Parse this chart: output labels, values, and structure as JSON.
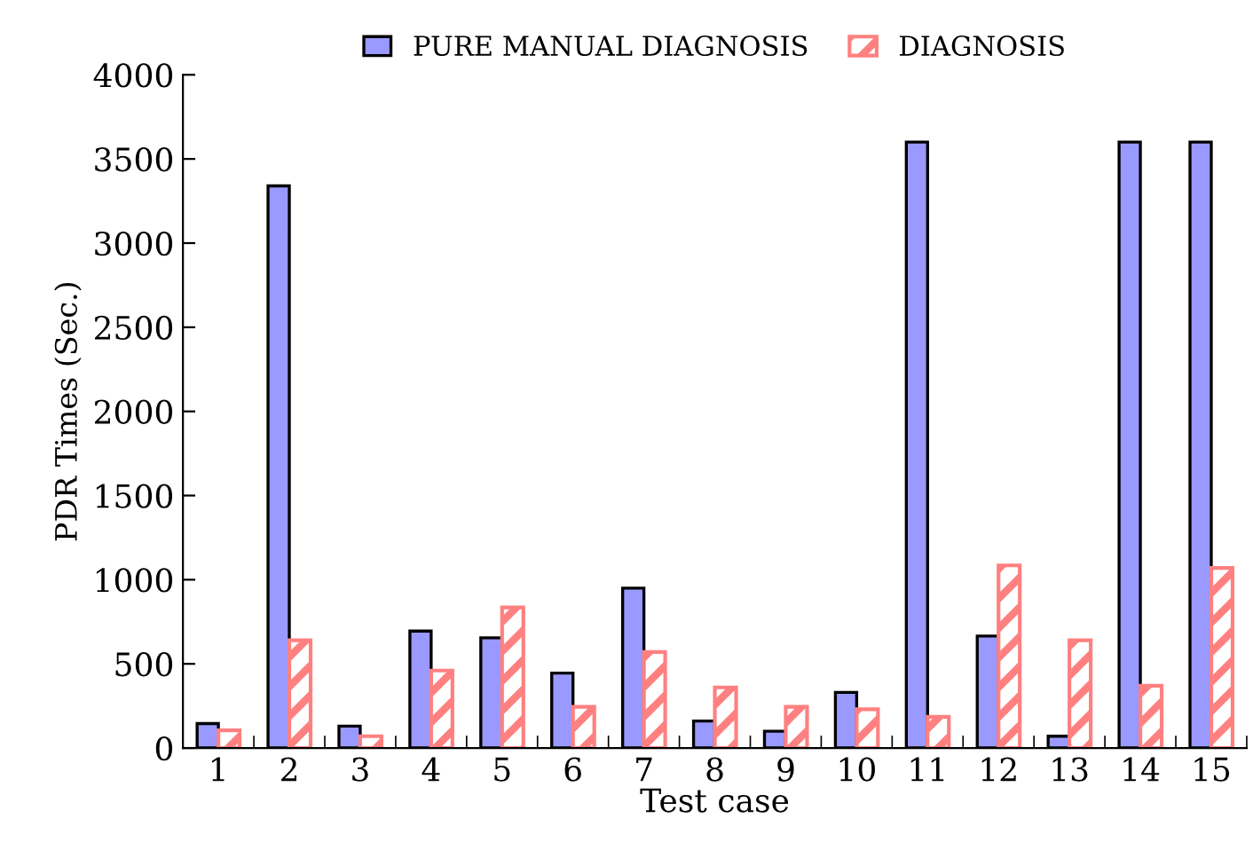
{
  "chart_data": {
    "type": "bar",
    "xlabel": "Test case",
    "ylabel": "PDR Times (Sec.)",
    "categories": [
      "1",
      "2",
      "3",
      "4",
      "5",
      "6",
      "7",
      "8",
      "9",
      "10",
      "11",
      "12",
      "13",
      "14",
      "15"
    ],
    "series": [
      {
        "name": "PURE MANUAL DIAGNOSIS",
        "color": "#9999ff",
        "values": [
          145,
          3340,
          130,
          695,
          655,
          445,
          950,
          160,
          100,
          330,
          3600,
          665,
          70,
          3600,
          3600
        ]
      },
      {
        "name": "DIAGNOSIS",
        "color": "#ff8080",
        "values": [
          105,
          640,
          70,
          460,
          835,
          245,
          570,
          360,
          245,
          230,
          185,
          1085,
          640,
          370,
          1070
        ]
      }
    ],
    "ylim": [
      0,
      4000
    ],
    "yticks": [
      0,
      500,
      1000,
      1500,
      2000,
      2500,
      3000,
      3500,
      4000
    ],
    "grid": false,
    "legend": "top"
  }
}
